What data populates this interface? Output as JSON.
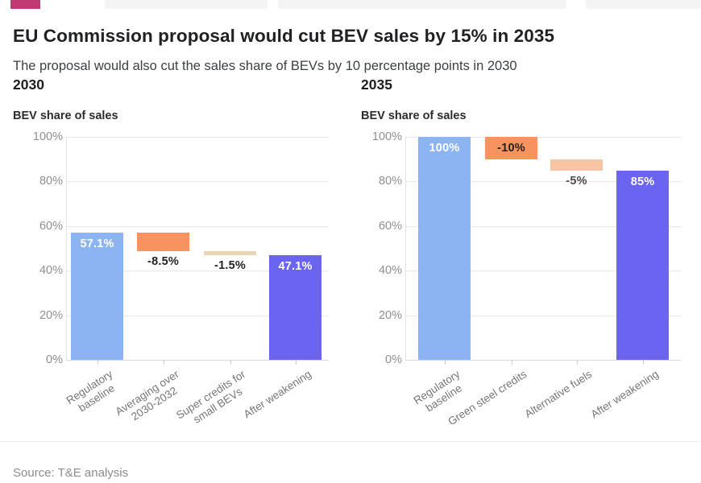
{
  "page": {
    "background": "#ffffff",
    "accent_logo_color": "#bf3a72"
  },
  "header": {
    "title": "EU Commission proposal would cut BEV sales by 15% in 2035",
    "subtitle": "The proposal would also cut the sales share of BEVs by 10 percentage points in 2030"
  },
  "footer": {
    "source": "Source: T&E analysis"
  },
  "colors": {
    "baseline_bar": "#8db4f2",
    "decrease_bar": "#f7935e",
    "decrease_light_bar": "#ead4b6",
    "decrease_peach_bar": "#f8c4a4",
    "result_bar": "#6b63f1",
    "label_light": "#ffffff",
    "label_dark": "#242220",
    "label_gray": "#4d4d4d"
  },
  "chart_data": [
    {
      "type": "waterfall",
      "title": "2030",
      "ylabel": "BEV share of sales",
      "ylim": [
        0,
        100
      ],
      "grid": true,
      "y_tick_percents": [
        100,
        80,
        60,
        40,
        20,
        0
      ],
      "y_tick_labels": [
        "100%",
        "80%",
        "60%",
        "40%",
        "20%",
        "0%"
      ],
      "categories": [
        "Regulatory baseline",
        "Averaging over 2030-2032",
        "Super credits for small BEVs",
        "After weakening"
      ],
      "category_label_lines": [
        [
          "Regulatory",
          "baseline"
        ],
        [
          "Averaging over",
          "2030-2032"
        ],
        [
          "Super credits for",
          "small BEVs"
        ],
        [
          "After weakening"
        ]
      ],
      "bars": [
        {
          "category": "Regulatory baseline",
          "from": 0,
          "to": 57.1,
          "value_label": "57.1%",
          "color": "baseline_bar",
          "label_placement": "inside",
          "label_style": "light"
        },
        {
          "category": "Averaging over 2030-2032",
          "from": 57.1,
          "to": 48.6,
          "value_label": "-8.5%",
          "color": "decrease_bar",
          "label_placement": "below",
          "label_style": "dark"
        },
        {
          "category": "Super credits for small BEVs",
          "from": 48.6,
          "to": 47.1,
          "value_label": "-1.5%",
          "color": "decrease_light_bar",
          "label_placement": "below",
          "label_style": "dark"
        },
        {
          "category": "After weakening",
          "from": 0,
          "to": 47.1,
          "value_label": "47.1%",
          "color": "result_bar",
          "label_placement": "inside",
          "label_style": "light"
        }
      ]
    },
    {
      "type": "waterfall",
      "title": "2035",
      "ylabel": "BEV share of sales",
      "ylim": [
        0,
        100
      ],
      "grid": true,
      "y_tick_percents": [
        100,
        80,
        60,
        40,
        20,
        0
      ],
      "y_tick_labels": [
        "100%",
        "80%",
        "60%",
        "40%",
        "20%",
        "0%"
      ],
      "categories": [
        "Regulatory baseline",
        "Green steel credits",
        "Alternative fuels",
        "After weakening"
      ],
      "category_label_lines": [
        [
          "Regulatory",
          "baseline"
        ],
        [
          "Green steel credits"
        ],
        [
          "Alternative fuels"
        ],
        [
          "After weakening"
        ]
      ],
      "bars": [
        {
          "category": "Regulatory baseline",
          "from": 0,
          "to": 100,
          "value_label": "100%",
          "color": "baseline_bar",
          "label_placement": "inside",
          "label_style": "light"
        },
        {
          "category": "Green steel credits",
          "from": 100,
          "to": 90,
          "value_label": "-10%",
          "color": "decrease_bar",
          "label_placement": "inside",
          "label_style": "dark"
        },
        {
          "category": "Alternative fuels",
          "from": 90,
          "to": 85,
          "value_label": "-5%",
          "color": "decrease_peach_bar",
          "label_placement": "below",
          "label_style": "gray"
        },
        {
          "category": "After weakening",
          "from": 0,
          "to": 85,
          "value_label": "85%",
          "color": "result_bar",
          "label_placement": "inside",
          "label_style": "light"
        }
      ]
    }
  ]
}
